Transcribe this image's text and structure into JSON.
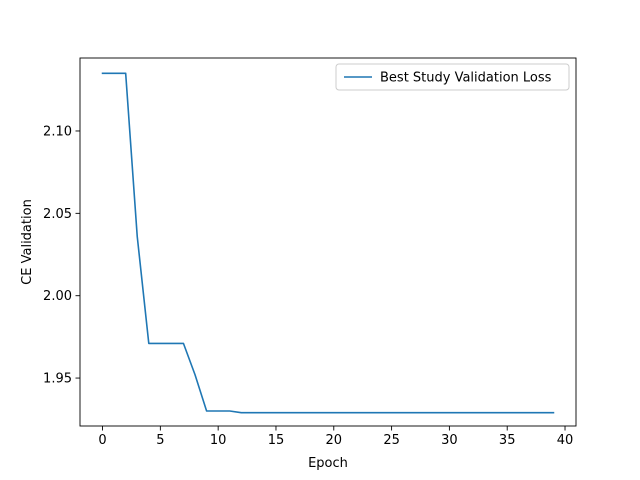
{
  "chart_data": {
    "type": "line",
    "title": "",
    "xlabel": "Epoch",
    "ylabel": "CE Validation",
    "xlim": [
      -1.95,
      40.95
    ],
    "ylim": [
      1.9209,
      2.1443
    ],
    "xticks": [
      0,
      5,
      10,
      15,
      20,
      25,
      30,
      35,
      40
    ],
    "xtick_labels": [
      "0",
      "5",
      "10",
      "15",
      "20",
      "25",
      "30",
      "35",
      "40"
    ],
    "yticks": [
      1.95,
      2.0,
      2.05,
      2.1
    ],
    "ytick_labels": [
      "1.95",
      "2.00",
      "2.05",
      "2.10"
    ],
    "grid": false,
    "legend_position": "top-right",
    "series": [
      {
        "name": "Best Study Validation Loss",
        "color": "#1f77b4",
        "x": [
          0,
          1,
          2,
          3,
          4,
          5,
          6,
          7,
          8,
          9,
          10,
          11,
          12,
          13,
          14,
          15,
          16,
          17,
          18,
          19,
          20,
          21,
          22,
          23,
          24,
          25,
          26,
          27,
          28,
          29,
          30,
          31,
          32,
          33,
          34,
          35,
          36,
          37,
          38,
          39
        ],
        "y": [
          2.135,
          2.135,
          2.135,
          2.036,
          1.971,
          1.971,
          1.971,
          1.971,
          1.952,
          1.93,
          1.93,
          1.93,
          1.929,
          1.929,
          1.929,
          1.929,
          1.929,
          1.929,
          1.929,
          1.929,
          1.929,
          1.929,
          1.929,
          1.929,
          1.929,
          1.929,
          1.929,
          1.929,
          1.929,
          1.929,
          1.929,
          1.929,
          1.929,
          1.929,
          1.929,
          1.929,
          1.929,
          1.929,
          1.929,
          1.929
        ]
      }
    ]
  }
}
